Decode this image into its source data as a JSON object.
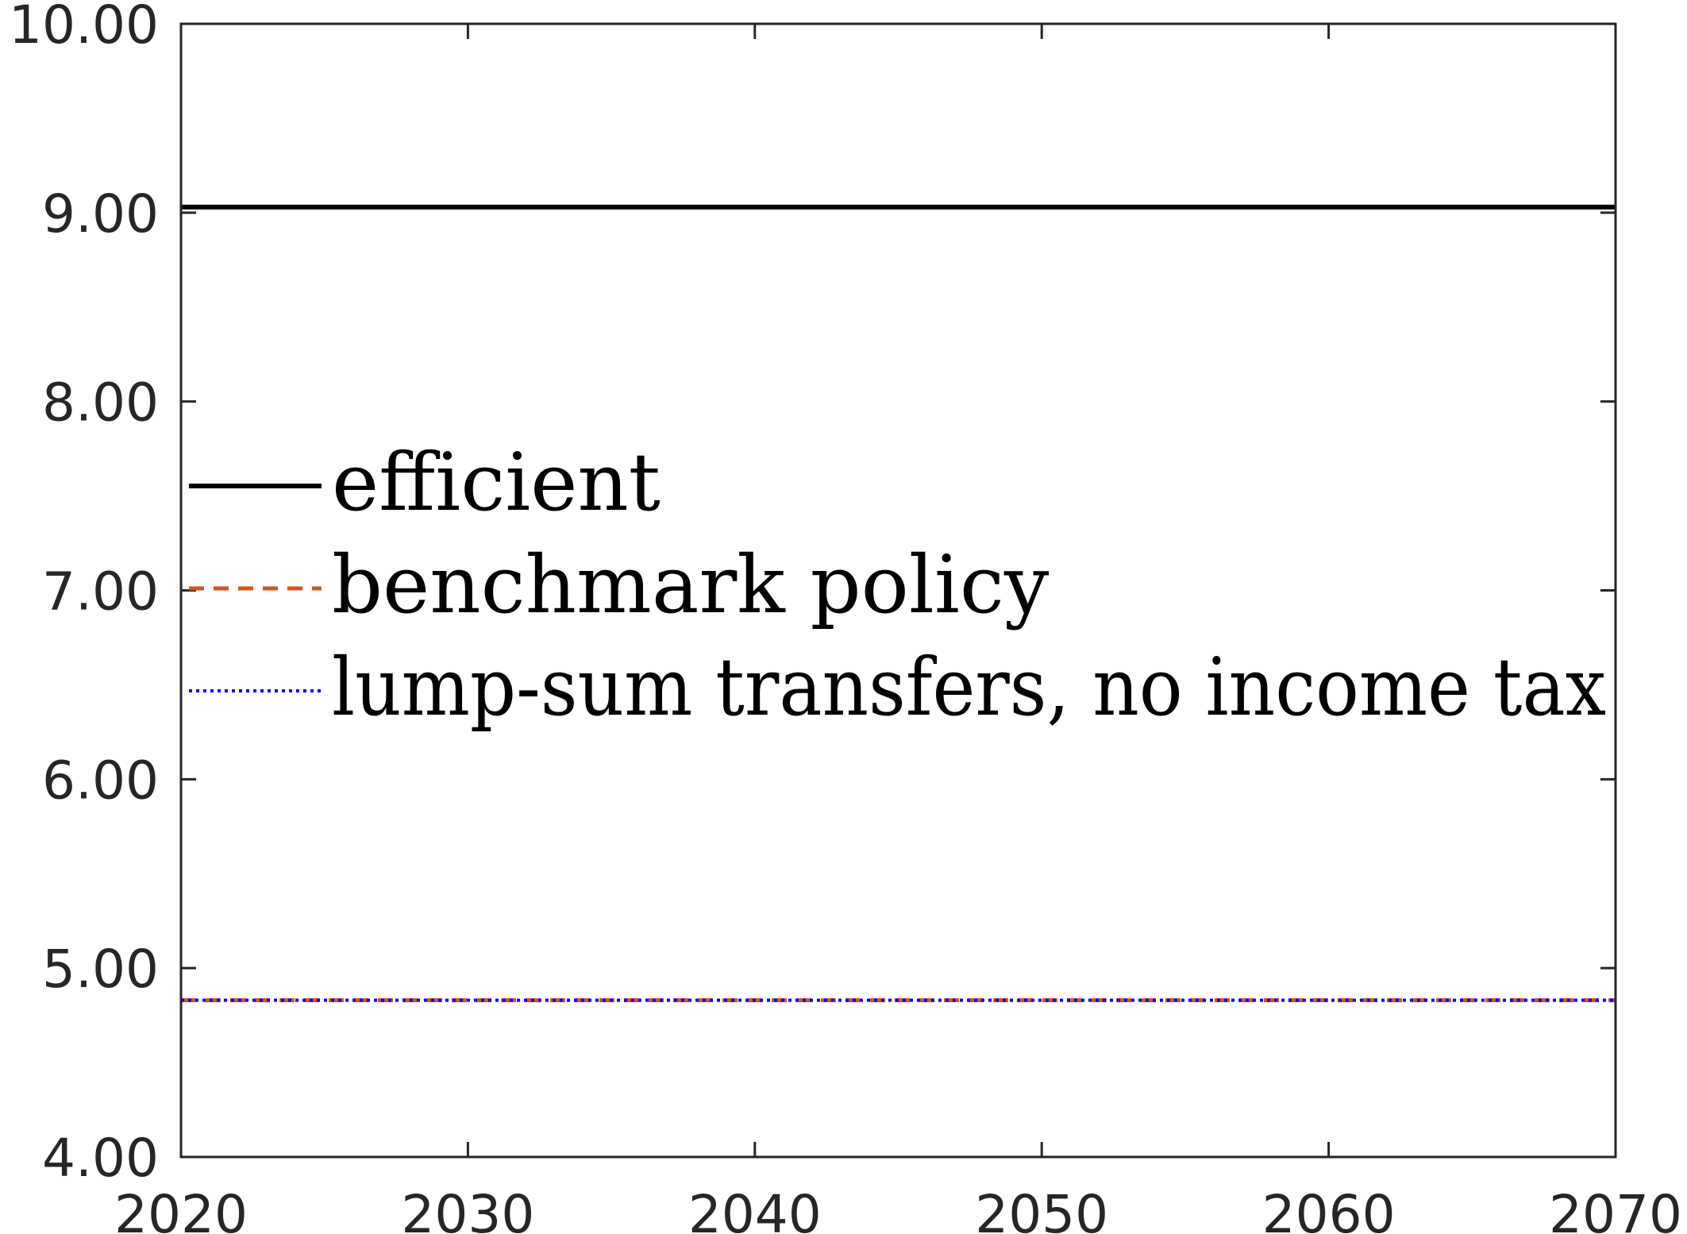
{
  "chart_data": {
    "type": "line",
    "x": [
      2020,
      2070
    ],
    "xlim": [
      2020,
      2070
    ],
    "ylim": [
      4,
      10
    ],
    "xticks": [
      2020,
      2030,
      2040,
      2050,
      2060,
      2070
    ],
    "xtick_labels": [
      "2020",
      "2030",
      "2040",
      "2050",
      "2060",
      "2070"
    ],
    "yticks": [
      4,
      5,
      6,
      7,
      8,
      9,
      10
    ],
    "ytick_labels": [
      "4.00",
      "5.00",
      "6.00",
      "7.00",
      "8.00",
      "9.00",
      "10.00"
    ],
    "grid": false,
    "legend_placement": "center-left",
    "series": [
      {
        "name": "efficient",
        "values": [
          9.03,
          9.03
        ],
        "color": "#000000",
        "style": "solid"
      },
      {
        "name": "benchmark policy",
        "values": [
          4.83,
          4.83
        ],
        "color": "#D95319",
        "style": "dashed"
      },
      {
        "name": "lump-sum transfers, no income tax",
        "values": [
          4.83,
          4.83
        ],
        "color": "#0000FF",
        "style": "dotted"
      }
    ]
  }
}
